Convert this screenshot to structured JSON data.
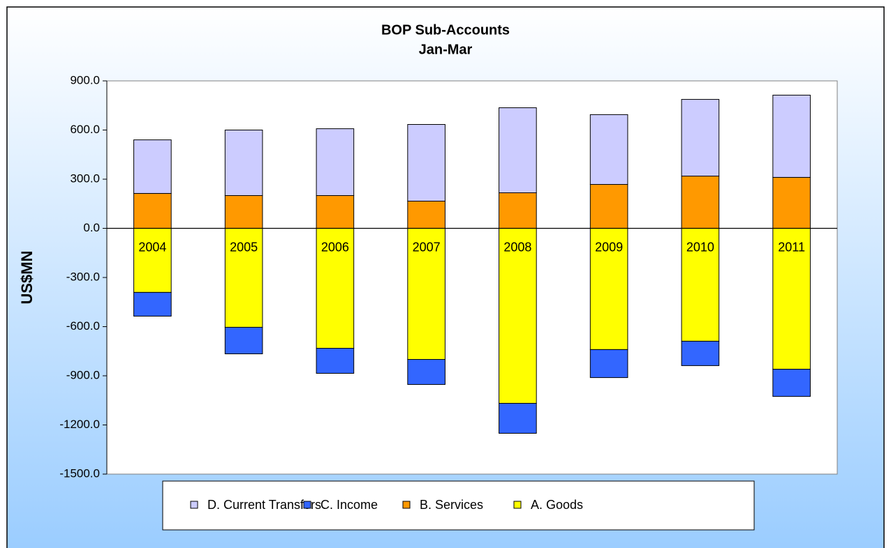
{
  "chart_data": {
    "type": "stacked_bar",
    "title": "BOP Sub-Accounts",
    "subtitle": "Jan-Mar",
    "ylabel": "US$MN",
    "categories": [
      "2004",
      "2005",
      "2006",
      "2007",
      "2008",
      "2009",
      "2010",
      "2011"
    ],
    "series": [
      {
        "name": "D. Current Transfers",
        "color": "#ccccff",
        "values": [
          327,
          400,
          408,
          468,
          519,
          426,
          468,
          502
        ]
      },
      {
        "name": "C. Income",
        "color": "#3366ff",
        "values": [
          -145,
          -162,
          -153,
          -153,
          -183,
          -171,
          -149,
          -166
        ]
      },
      {
        "name": "B. Services",
        "color": "#ff9900",
        "values": [
          213,
          200,
          200,
          166,
          217,
          268,
          319,
          311
        ]
      },
      {
        "name": "A. Goods",
        "color": "#ffff00",
        "values": [
          -391,
          -604,
          -732,
          -800,
          -1068,
          -740,
          -689,
          -860
        ]
      }
    ],
    "ylim": [
      -1500,
      900
    ],
    "yticks": [
      {
        "value": -1500,
        "label": "-1500.0"
      },
      {
        "value": -1200,
        "label": "-1200.0"
      },
      {
        "value": -900,
        "label": "-900.0"
      },
      {
        "value": -600,
        "label": "-600.0"
      },
      {
        "value": -300,
        "label": "-300.0"
      },
      {
        "value": 0,
        "label": "0.0"
      },
      {
        "value": 300,
        "label": "300.0"
      },
      {
        "value": 600,
        "label": "600.0"
      },
      {
        "value": 900,
        "label": "900.0"
      }
    ],
    "legend": "bottom"
  }
}
